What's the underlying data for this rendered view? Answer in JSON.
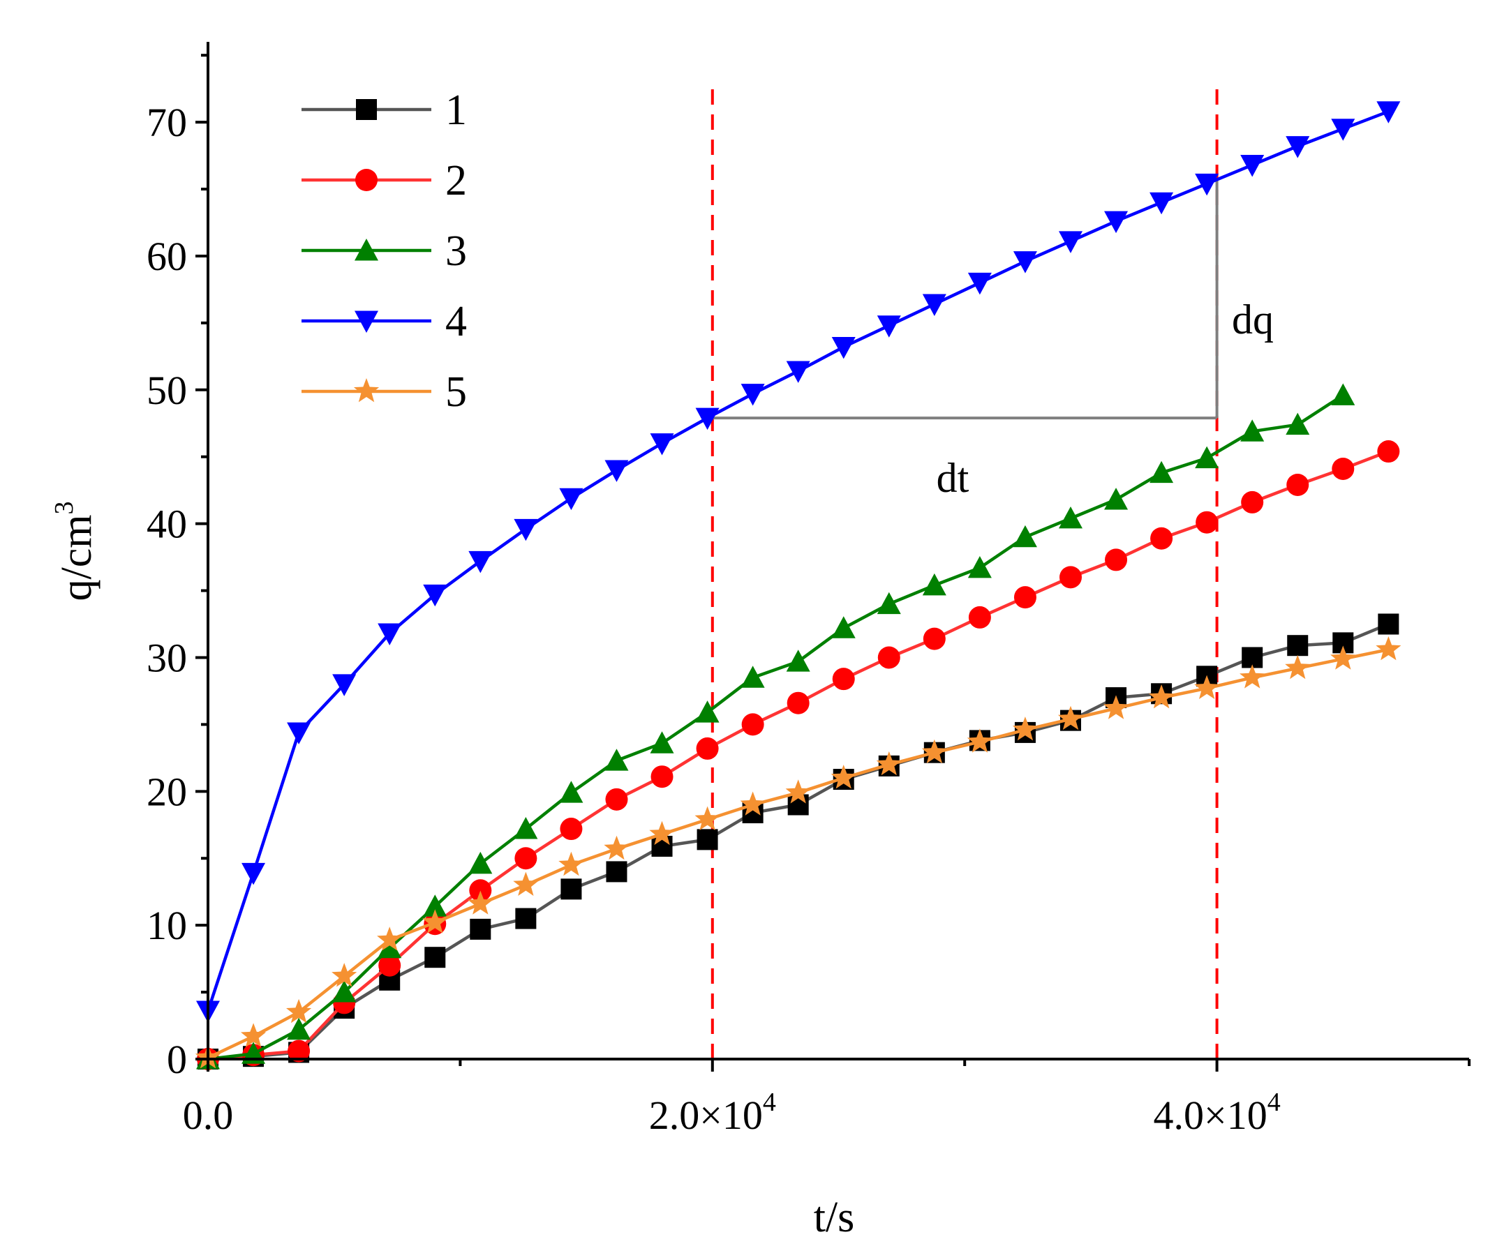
{
  "chart_data": {
    "type": "line",
    "title": "",
    "xlabel": "t/s",
    "ylabel": "q/cm",
    "ylabel_superscript": "3",
    "xlim": [
      0,
      50000
    ],
    "ylim": [
      0,
      76
    ],
    "x_ticks": [
      {
        "value": 0,
        "mantissa": "0.0",
        "times": "",
        "base": "",
        "exp": ""
      },
      {
        "value": 20000,
        "mantissa": "2.0",
        "times": "×",
        "base": "10",
        "exp": "4"
      },
      {
        "value": 40000,
        "mantissa": "4.0",
        "times": "×",
        "base": "10",
        "exp": "4"
      }
    ],
    "y_ticks": [
      0,
      10,
      20,
      30,
      40,
      50,
      60,
      70
    ],
    "legend_position": "top-left",
    "series": [
      {
        "name": "1",
        "color": "#000000",
        "line_color": "#555555",
        "marker": "square",
        "x": [
          0,
          1800,
          3600,
          5400,
          7200,
          9000,
          10800,
          12600,
          14400,
          16200,
          18000,
          19800,
          21600,
          23400,
          25200,
          27000,
          28800,
          30600,
          32400,
          34200,
          36000,
          37800,
          39600,
          41400,
          43200,
          45000,
          46800
        ],
        "values": [
          0,
          0.2,
          0.5,
          3.8,
          5.9,
          7.6,
          9.7,
          10.5,
          12.7,
          14,
          15.9,
          16.4,
          18.4,
          19,
          20.9,
          21.9,
          22.9,
          23.8,
          24.4,
          25.3,
          27,
          27.3,
          28.6,
          30,
          30.9,
          31.1,
          32.5
        ]
      },
      {
        "name": "2",
        "color": "#ff0000",
        "line_color": "#ff3333",
        "marker": "circle",
        "x": [
          0,
          1800,
          3600,
          5400,
          7200,
          9000,
          10800,
          12600,
          14400,
          16200,
          18000,
          19800,
          21600,
          23400,
          25200,
          27000,
          28800,
          30600,
          32400,
          34200,
          36000,
          37800,
          39600,
          41400,
          43200,
          45000,
          46800
        ],
        "values": [
          0,
          0.3,
          0.6,
          4.2,
          7,
          10.1,
          12.6,
          15,
          17.2,
          19.4,
          21.1,
          23.2,
          25,
          26.6,
          28.4,
          30,
          31.4,
          33,
          34.5,
          36,
          37.3,
          38.9,
          40.1,
          41.6,
          42.9,
          44.1,
          45.4
        ]
      },
      {
        "name": "3",
        "color": "#008000",
        "line_color": "#008000",
        "marker": "triangle-up",
        "x": [
          0,
          1800,
          3600,
          5400,
          7200,
          9000,
          10800,
          12600,
          14400,
          16200,
          18000,
          19800,
          21600,
          23400,
          25200,
          27000,
          28800,
          30600,
          32400,
          34200,
          36000,
          37800,
          39600,
          41400,
          43200,
          45000
        ],
        "values": [
          0,
          0.4,
          2.2,
          5,
          8.3,
          11.4,
          14.6,
          17.2,
          19.9,
          22.3,
          23.6,
          25.9,
          28.5,
          29.7,
          32.2,
          34,
          35.4,
          36.7,
          39,
          40.4,
          41.8,
          43.8,
          44.9,
          46.9,
          47.4,
          49.6
        ]
      },
      {
        "name": "4",
        "color": "#0000ff",
        "line_color": "#0000ff",
        "marker": "triangle-down",
        "x": [
          0,
          1800,
          3600,
          5400,
          7200,
          9000,
          10800,
          12600,
          14400,
          16200,
          18000,
          19800,
          21600,
          23400,
          25200,
          27000,
          28800,
          30600,
          32400,
          34200,
          36000,
          37800,
          39600,
          41400,
          43200,
          45000,
          46800
        ],
        "values": [
          3.6,
          13.9,
          24.4,
          28,
          31.8,
          34.7,
          37.2,
          39.6,
          41.9,
          44,
          46,
          47.9,
          49.7,
          51.4,
          53.2,
          54.8,
          56.4,
          58,
          59.6,
          61.1,
          62.6,
          64,
          65.4,
          66.8,
          68.2,
          69.5,
          70.8
        ]
      },
      {
        "name": "5",
        "color": "#f59131",
        "line_color": "#f59131",
        "marker": "star",
        "x": [
          0,
          1800,
          3600,
          5400,
          7200,
          9000,
          10800,
          12600,
          14400,
          16200,
          18000,
          19800,
          21600,
          23400,
          25200,
          27000,
          28800,
          30600,
          32400,
          34200,
          36000,
          37800,
          39600,
          41400,
          43200,
          45000,
          46800
        ],
        "values": [
          0.1,
          1.7,
          3.5,
          6.2,
          8.9,
          10.2,
          11.6,
          13,
          14.5,
          15.7,
          16.8,
          17.9,
          19,
          19.9,
          21,
          22,
          22.9,
          23.7,
          24.6,
          25.4,
          26.2,
          27,
          27.7,
          28.5,
          29.2,
          29.9,
          30.6
        ]
      }
    ],
    "annotations": {
      "vlines": [
        {
          "x": 20000,
          "color": "#ff0000",
          "style": "dashed"
        },
        {
          "x": 40000,
          "color": "#ff0000",
          "style": "dashed"
        }
      ],
      "slope_triangle": {
        "x_start": 20000,
        "x_end": 40000,
        "y_start": 47.9,
        "y_end": 65.7,
        "color": "#7f7f7f",
        "dt_label": "dt",
        "dq_label": "dq"
      }
    }
  }
}
